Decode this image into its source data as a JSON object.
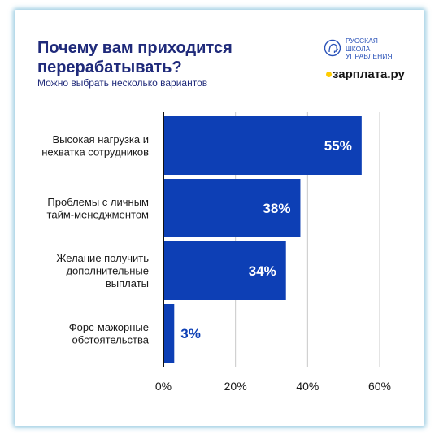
{
  "header": {
    "title": "Почему вам приходится перерабатывать?",
    "subtitle": "Можно выбрать несколько вариантов"
  },
  "logos": {
    "rshu": {
      "line1": "РУССКАЯ",
      "line2": "ШКОЛА",
      "line3": "УПРАВЛЕНИЯ",
      "icon": "globe-head-icon"
    },
    "zarplata": {
      "text": "зарплата.ру"
    }
  },
  "colors": {
    "bar": "#0d3fb5",
    "title": "#1f2a7a",
    "value_inside": "#ffffff",
    "value_outside": "#0d3fb5",
    "grid": "#c8c8c8"
  },
  "chart_data": {
    "type": "bar",
    "orientation": "horizontal",
    "title": "Почему вам приходится перерабатывать?",
    "subtitle": "Можно выбрать несколько вариантов",
    "categories": [
      [
        "Высокая нагрузка и",
        "нехватка сотрудников"
      ],
      [
        "Проблемы с личным",
        "тайм-менеджментом"
      ],
      [
        "Желание получить",
        "дополнительные",
        "выплаты"
      ],
      [
        "Форс-мажорные",
        "обстоятельства"
      ]
    ],
    "values": [
      55,
      38,
      34,
      3
    ],
    "value_labels": [
      "55%",
      "38%",
      "34%",
      "3%"
    ],
    "xlim": [
      0,
      60
    ],
    "xticks": [
      0,
      20,
      40,
      60
    ],
    "xtick_labels": [
      "0%",
      "20%",
      "40%",
      "60%"
    ],
    "grid": true,
    "legend": false
  }
}
